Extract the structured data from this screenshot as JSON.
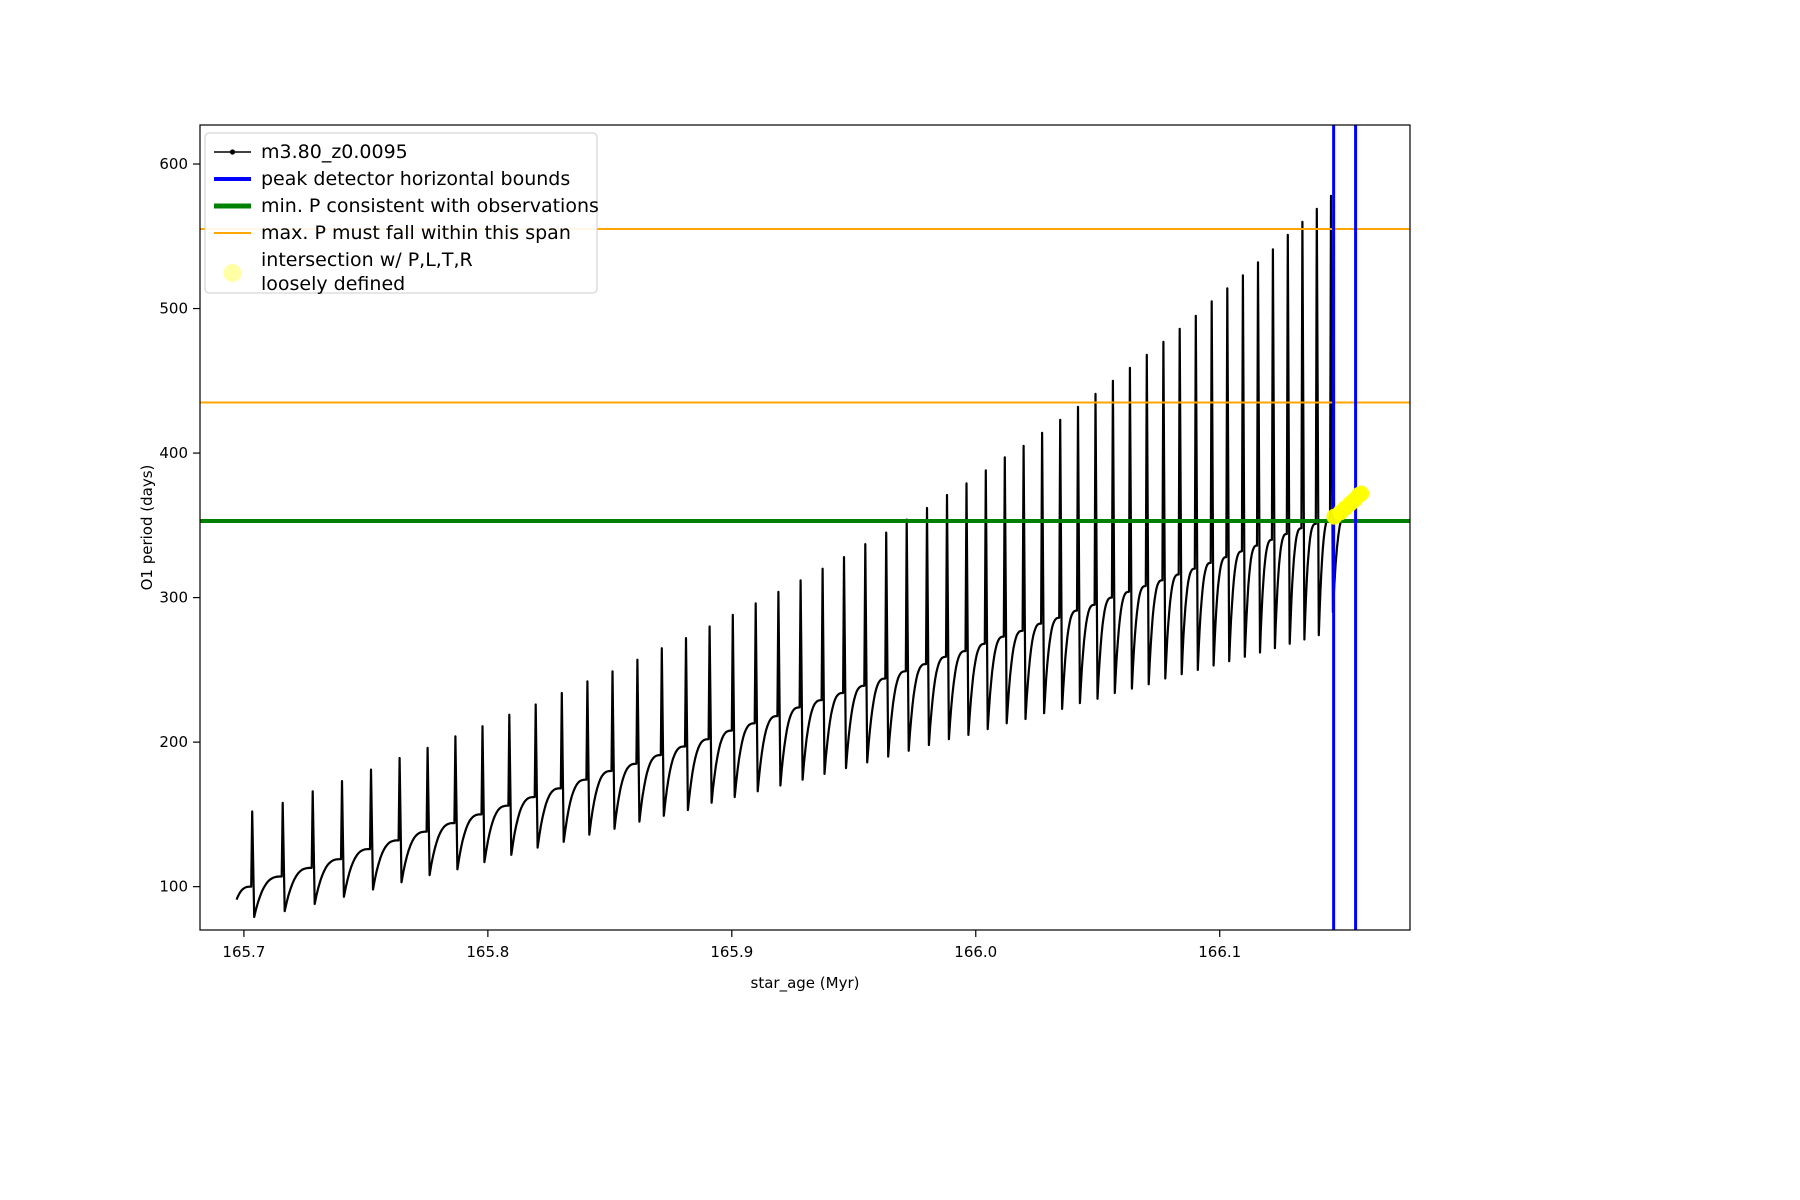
{
  "figure": {
    "background": "#ffffff"
  },
  "chart_data": {
    "type": "line",
    "title": "",
    "xlabel": "star_age (Myr)",
    "ylabel": "O1 period (days)",
    "xlim": [
      165.682,
      166.178
    ],
    "ylim": [
      70,
      627
    ],
    "grid": false,
    "legend_position": "upper left",
    "xticks": [
      165.7,
      165.8,
      165.9,
      166.0,
      166.1
    ],
    "xtick_labels": [
      "165.7",
      "165.8",
      "165.9",
      "166.0",
      "166.1"
    ],
    "yticks": [
      100,
      200,
      300,
      400,
      500,
      600
    ],
    "ytick_labels": [
      "100",
      "200",
      "300",
      "400",
      "500",
      "600"
    ],
    "legend": [
      {
        "key": "series",
        "lines": [
          "m3.80_z0.0095"
        ],
        "type": "line-marker",
        "color": "#000000",
        "lw": 1.5
      },
      {
        "key": "peak-bounds",
        "lines": [
          "peak detector horizontal bounds"
        ],
        "type": "line",
        "color": "#0000ff",
        "lw": 4
      },
      {
        "key": "min-p",
        "lines": [
          "min. P consistent with observations"
        ],
        "type": "line",
        "color": "#008000",
        "lw": 5
      },
      {
        "key": "max-p-span",
        "lines": [
          "max. P must fall within this span"
        ],
        "type": "line",
        "color": "#ffa500",
        "lw": 2
      },
      {
        "key": "intersection",
        "lines": [
          "intersection w/ P,L,T,R",
          "loosely defined"
        ],
        "type": "marker",
        "color": "#ffff00",
        "lw": 0
      }
    ],
    "hlines": [
      {
        "name": "max-P-upper-bound",
        "y": 555,
        "color": "#ffa500",
        "lw": 2
      },
      {
        "name": "max-P-lower-bound",
        "y": 435,
        "color": "#ffa500",
        "lw": 2
      },
      {
        "name": "min-P-observed",
        "y": 353,
        "color": "#008000",
        "lw": 4
      }
    ],
    "vlines": [
      {
        "name": "peak-bound-left",
        "x": 166.1467,
        "color": "#0000ff",
        "lw": 3
      },
      {
        "name": "peak-bound-right",
        "x": 166.1557,
        "color": "#0000ff",
        "lw": 3
      }
    ],
    "scatter": {
      "name": "intersection-points",
      "color": "#ffff00",
      "marker_radius": 8,
      "points": [
        [
          166.147,
          356
        ],
        [
          166.1495,
          359
        ],
        [
          166.1515,
          362
        ],
        [
          166.1535,
          365
        ],
        [
          166.1555,
          368
        ],
        [
          166.157,
          371
        ],
        [
          166.158,
          372
        ]
      ]
    },
    "series": {
      "name": "m3.80_z0.0095",
      "color": "#000000",
      "lw": 2.2,
      "tail": {
        "t": 166.152,
        "p": 358,
        "t_end": 166.158,
        "p_end": 372
      },
      "pulses": [
        {
          "t": 165.703,
          "ridge": 100,
          "peak": 152,
          "dip": 79
        },
        {
          "t": 165.7155,
          "ridge": 107,
          "peak": 158,
          "dip": 83
        },
        {
          "t": 165.7278,
          "ridge": 113,
          "peak": 166,
          "dip": 88
        },
        {
          "t": 165.7398,
          "ridge": 119,
          "peak": 173,
          "dip": 93
        },
        {
          "t": 165.7517,
          "ridge": 126,
          "peak": 181,
          "dip": 98
        },
        {
          "t": 165.7634,
          "ridge": 132,
          "peak": 189,
          "dip": 103
        },
        {
          "t": 165.7749,
          "ridge": 138,
          "peak": 196,
          "dip": 108
        },
        {
          "t": 165.7863,
          "ridge": 144,
          "peak": 204,
          "dip": 112
        },
        {
          "t": 165.7974,
          "ridge": 150,
          "peak": 211,
          "dip": 117
        },
        {
          "t": 165.8084,
          "ridge": 156,
          "peak": 219,
          "dip": 122
        },
        {
          "t": 165.8192,
          "ridge": 162,
          "peak": 226,
          "dip": 127
        },
        {
          "t": 165.8299,
          "ridge": 168,
          "peak": 234,
          "dip": 131
        },
        {
          "t": 165.8404,
          "ridge": 174,
          "peak": 242,
          "dip": 136
        },
        {
          "t": 165.8507,
          "ridge": 180,
          "peak": 249,
          "dip": 140
        },
        {
          "t": 165.8609,
          "ridge": 185,
          "peak": 257,
          "dip": 145
        },
        {
          "t": 165.8709,
          "ridge": 191,
          "peak": 265,
          "dip": 149
        },
        {
          "t": 165.8808,
          "ridge": 197,
          "peak": 272,
          "dip": 153
        },
        {
          "t": 165.8905,
          "ridge": 202,
          "peak": 280,
          "dip": 158
        },
        {
          "t": 165.9,
          "ridge": 208,
          "peak": 288,
          "dip": 162
        },
        {
          "t": 165.9094,
          "ridge": 213,
          "peak": 296,
          "dip": 166
        },
        {
          "t": 165.9187,
          "ridge": 218,
          "peak": 304,
          "dip": 170
        },
        {
          "t": 165.9278,
          "ridge": 224,
          "peak": 312,
          "dip": 174
        },
        {
          "t": 165.9368,
          "ridge": 229,
          "peak": 320,
          "dip": 178
        },
        {
          "t": 165.9456,
          "ridge": 234,
          "peak": 328,
          "dip": 182
        },
        {
          "t": 165.9543,
          "ridge": 239,
          "peak": 337,
          "dip": 186
        },
        {
          "t": 165.9629,
          "ridge": 244,
          "peak": 345,
          "dip": 190
        },
        {
          "t": 165.9713,
          "ridge": 249,
          "peak": 354,
          "dip": 194
        },
        {
          "t": 165.9796,
          "ridge": 254,
          "peak": 362,
          "dip": 198
        },
        {
          "t": 165.9878,
          "ridge": 259,
          "peak": 371,
          "dip": 202
        },
        {
          "t": 165.9958,
          "ridge": 263,
          "peak": 379,
          "dip": 205
        },
        {
          "t": 166.0037,
          "ridge": 268,
          "peak": 388,
          "dip": 209
        },
        {
          "t": 166.0115,
          "ridge": 273,
          "peak": 397,
          "dip": 213
        },
        {
          "t": 166.0192,
          "ridge": 277,
          "peak": 405,
          "dip": 216
        },
        {
          "t": 166.0268,
          "ridge": 282,
          "peak": 414,
          "dip": 220
        },
        {
          "t": 166.0342,
          "ridge": 286,
          "peak": 423,
          "dip": 223
        },
        {
          "t": 166.0415,
          "ridge": 291,
          "peak": 432,
          "dip": 227
        },
        {
          "t": 166.0487,
          "ridge": 295,
          "peak": 441,
          "dip": 230
        },
        {
          "t": 166.0558,
          "ridge": 300,
          "peak": 450,
          "dip": 234
        },
        {
          "t": 166.0628,
          "ridge": 304,
          "peak": 459,
          "dip": 237
        },
        {
          "t": 166.0697,
          "ridge": 308,
          "peak": 468,
          "dip": 240
        },
        {
          "t": 166.0765,
          "ridge": 312,
          "peak": 477,
          "dip": 244
        },
        {
          "t": 166.0832,
          "ridge": 316,
          "peak": 486,
          "dip": 247
        },
        {
          "t": 166.0898,
          "ridge": 320,
          "peak": 495,
          "dip": 250
        },
        {
          "t": 166.0963,
          "ridge": 324,
          "peak": 505,
          "dip": 253
        },
        {
          "t": 166.1027,
          "ridge": 328,
          "peak": 514,
          "dip": 256
        },
        {
          "t": 166.1091,
          "ridge": 332,
          "peak": 523,
          "dip": 259
        },
        {
          "t": 166.1153,
          "ridge": 336,
          "peak": 532,
          "dip": 262
        },
        {
          "t": 166.1214,
          "ridge": 340,
          "peak": 541,
          "dip": 265
        },
        {
          "t": 166.1275,
          "ridge": 344,
          "peak": 551,
          "dip": 268
        },
        {
          "t": 166.1335,
          "ridge": 348,
          "peak": 560,
          "dip": 271
        },
        {
          "t": 166.1394,
          "ridge": 351,
          "peak": 569,
          "dip": 274
        },
        {
          "t": 166.1452,
          "ridge": 355,
          "peak": 578,
          "dip": 290
        }
      ]
    }
  }
}
